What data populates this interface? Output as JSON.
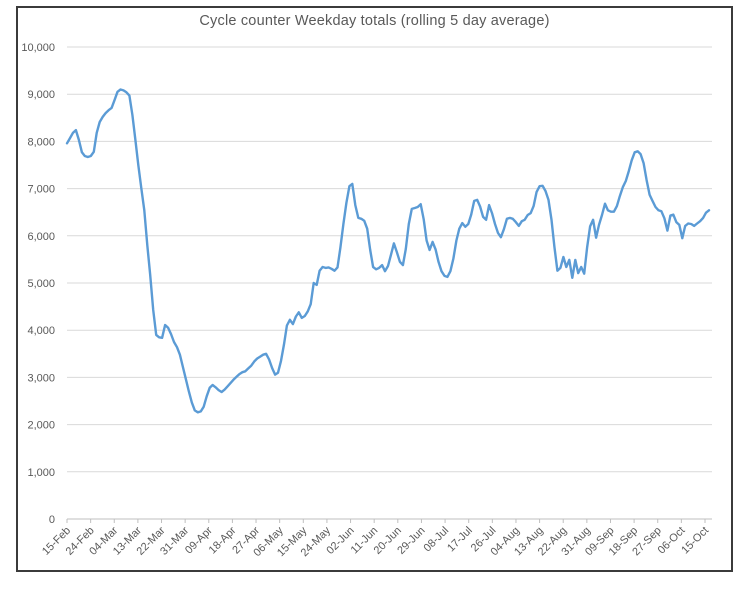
{
  "window": {
    "background": "#FFFFFF",
    "border_color": "#3B3B3B"
  },
  "chart_data": {
    "type": "line",
    "title": "Cycle counter Weekday totals (rolling 5 day average)",
    "legend": "none",
    "grid": "horizontal",
    "x_label_rotation": -45,
    "ylim": [
      0,
      10000
    ],
    "y_ticks": [
      0,
      1000,
      2000,
      3000,
      4000,
      5000,
      6000,
      7000,
      8000,
      9000,
      10000
    ],
    "y_tick_labels": [
      "0",
      "1,000",
      "2,000",
      "3,000",
      "4,000",
      "5,000",
      "6,000",
      "7,000",
      "8,000",
      "9,000",
      "10,000"
    ],
    "x_tick_labels": [
      "15-Feb",
      "24-Feb",
      "04-Mar",
      "13-Mar",
      "22-Mar",
      "31-Mar",
      "09-Apr",
      "18-Apr",
      "27-Apr",
      "06-May",
      "15-May",
      "24-May",
      "02-Jun",
      "11-Jun",
      "20-Jun",
      "29-Jun",
      "08-Jul",
      "17-Jul",
      "26-Jul",
      "04-Aug",
      "13-Aug",
      "22-Aug",
      "31-Aug",
      "09-Sep",
      "18-Sep",
      "27-Sep",
      "06-Oct",
      "15-Oct"
    ],
    "gridline_color": "#D9D9D9",
    "axis_color": "#BFBFBF",
    "text_color": "#595959",
    "series": [
      {
        "name": "Weekday totals (rolling 5 day average)",
        "color": "#5B9BD5",
        "x_spacing": "uniform between first (15-Feb) and last (15-Oct) category",
        "values": [
          7960,
          8070,
          8180,
          8240,
          8030,
          7770,
          7690,
          7670,
          7690,
          7780,
          8180,
          8410,
          8520,
          8600,
          8660,
          8710,
          8880,
          9050,
          9100,
          9080,
          9040,
          8970,
          8560,
          8030,
          7500,
          7010,
          6540,
          5800,
          5170,
          4430,
          3900,
          3850,
          3840,
          4110,
          4050,
          3920,
          3750,
          3640,
          3480,
          3220,
          2960,
          2700,
          2470,
          2300,
          2260,
          2280,
          2380,
          2600,
          2780,
          2840,
          2790,
          2730,
          2690,
          2740,
          2810,
          2880,
          2950,
          3010,
          3070,
          3110,
          3130,
          3190,
          3250,
          3340,
          3400,
          3440,
          3480,
          3500,
          3380,
          3200,
          3060,
          3100,
          3350,
          3700,
          4100,
          4220,
          4130,
          4290,
          4380,
          4260,
          4300,
          4400,
          4550,
          5000,
          4960,
          5260,
          5340,
          5320,
          5330,
          5300,
          5260,
          5330,
          5750,
          6250,
          6700,
          7050,
          7100,
          6650,
          6380,
          6360,
          6320,
          6150,
          5700,
          5340,
          5290,
          5320,
          5380,
          5250,
          5360,
          5600,
          5840,
          5650,
          5450,
          5380,
          5720,
          6250,
          6570,
          6590,
          6610,
          6670,
          6350,
          5900,
          5700,
          5870,
          5710,
          5450,
          5250,
          5150,
          5130,
          5250,
          5520,
          5900,
          6150,
          6270,
          6190,
          6250,
          6450,
          6740,
          6760,
          6620,
          6400,
          6340,
          6650,
          6480,
          6250,
          6060,
          5970,
          6140,
          6360,
          6380,
          6360,
          6290,
          6210,
          6310,
          6340,
          6440,
          6480,
          6630,
          6930,
          7050,
          7060,
          6950,
          6760,
          6340,
          5770,
          5260,
          5320,
          5550,
          5340,
          5490,
          5110,
          5490,
          5210,
          5340,
          5200,
          5750,
          6200,
          6340,
          5960,
          6230,
          6440,
          6680,
          6540,
          6510,
          6510,
          6630,
          6840,
          7030,
          7160,
          7370,
          7600,
          7770,
          7790,
          7730,
          7540,
          7180,
          6870,
          6740,
          6610,
          6540,
          6520,
          6370,
          6110,
          6430,
          6450,
          6290,
          6230,
          5950,
          6210,
          6260,
          6250,
          6210,
          6260,
          6310,
          6380,
          6490,
          6540
        ]
      }
    ]
  }
}
